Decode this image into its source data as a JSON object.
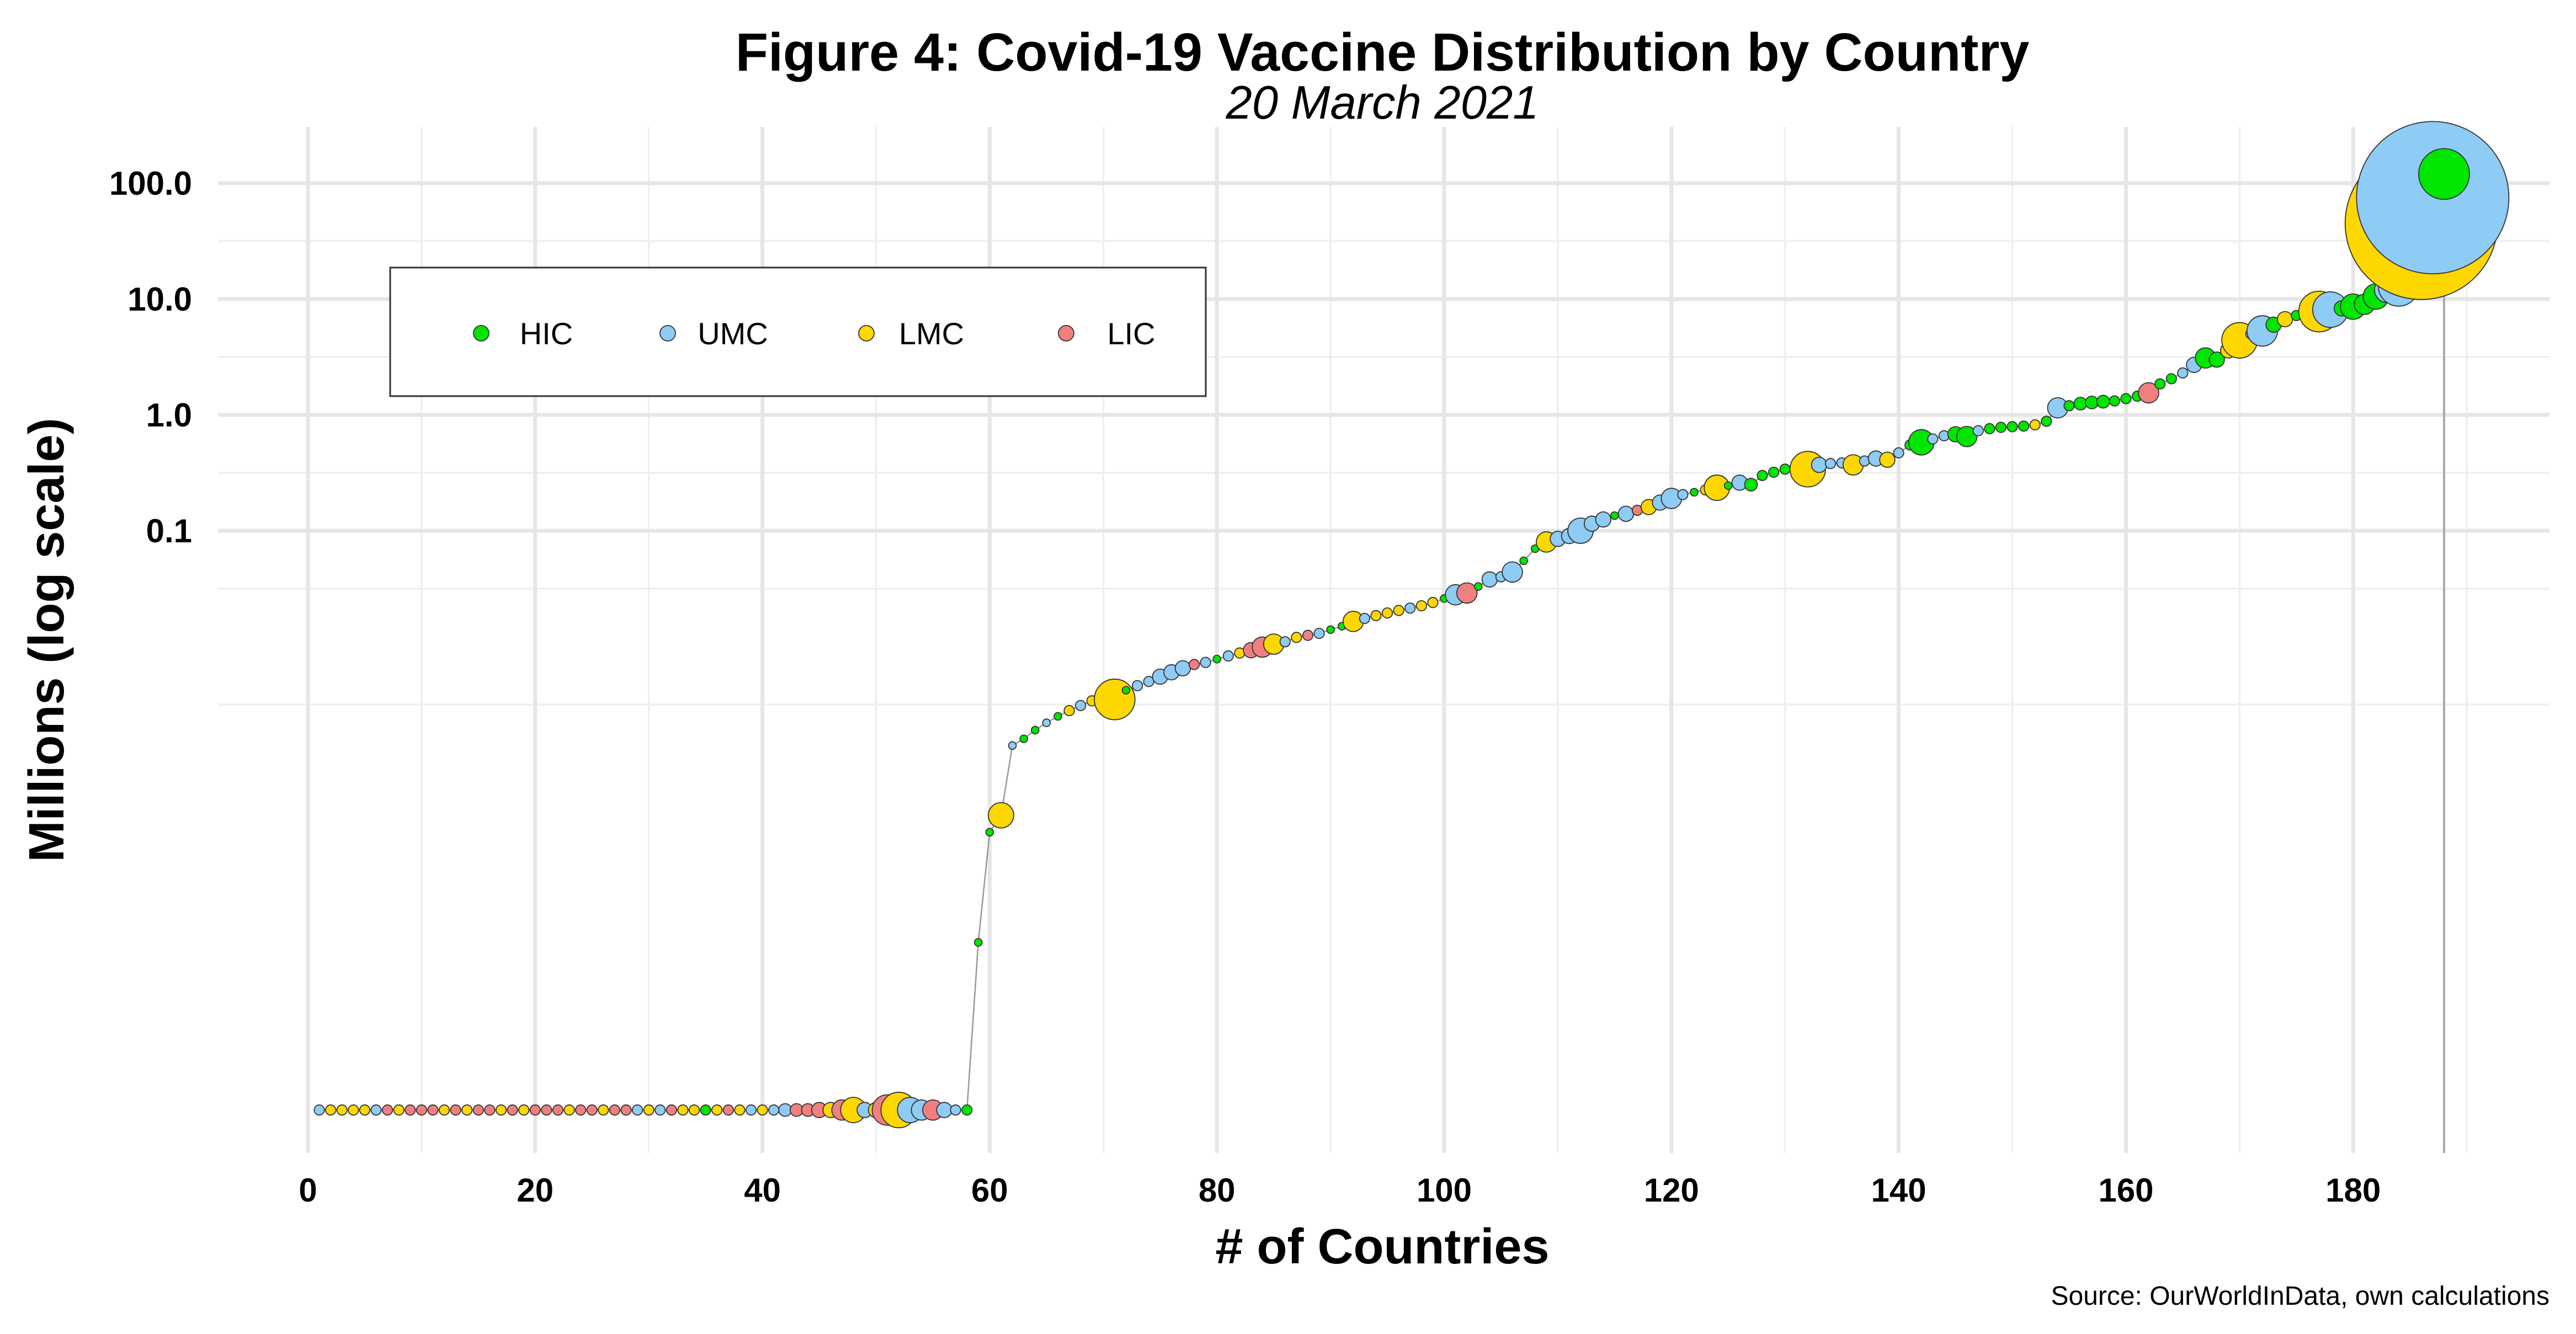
{
  "chart_data": {
    "type": "scatter",
    "title": "Figure 4: Covid-19 Vaccine Distribution by Country",
    "subtitle": "20 March 2021",
    "xlabel": "# of Countries",
    "ylabel": "Millions (log scale)",
    "caption": "Source: OurWorldInData, own calculations",
    "xlim": [
      0,
      190
    ],
    "x_ticks": [
      0,
      20,
      40,
      60,
      80,
      100,
      120,
      140,
      160,
      180
    ],
    "y_scale": "log10",
    "y_tick_values": [
      0.1,
      1,
      10,
      100
    ],
    "y_tick_labels": [
      "0.1",
      "1.0",
      "10.0",
      "100.0"
    ],
    "y_floor_value": 1e-06,
    "reference_line_x": 188,
    "legend": {
      "position": "top-left",
      "entries": [
        {
          "key": "HIC",
          "label": "HIC",
          "color": "#00e600"
        },
        {
          "key": "UMC",
          "label": "UMC",
          "color": "#8ecbf5"
        },
        {
          "key": "LMC",
          "label": "LMC",
          "color": "#ffd700"
        },
        {
          "key": "LIC",
          "label": "LIC",
          "color": "#f08080"
        }
      ]
    },
    "zero_group": "UMC,LMC,LMC,LMC,LMC,UMC,LIC,LMC,LIC,LIC,LIC,LMC,LIC,LMC,LIC,LIC,LMC,LIC,LMC,LIC,LIC,LIC,LMC,LIC,LIC,LMC,LIC,LIC,UMC,LMC,UMC,LIC,LMC,LMC,HIC,LMC,LIC,LMC,UMC,LMC,UMC,UMC,LIC,LIC,LIC,LMC,LIC,LMC,UMC,LMC,LIC,LMC,UMC,UMC,LIC,UMC,UMC,HIC",
    "zero_size": "2,2,2,2,2,2,2,2,2,2,2,2,2,2,2,2,2,2,2,2,2,2,2,2,2,2,2,2,2,2,2,2,2,2,2,2,2,2,2,2,2,2.5,2.5,2.5,3,3,4,5,3,3,6,7,5,4,4,3,2,2",
    "points": [
      {
        "x": 59,
        "y": 2.8e-05,
        "group": "HIC",
        "size": 1.5
      },
      {
        "x": 60,
        "y": 0.00025,
        "group": "HIC",
        "size": 1.5
      },
      {
        "x": 61,
        "y": 0.00035,
        "group": "LMC",
        "size": 5
      },
      {
        "x": 62,
        "y": 0.0014,
        "group": "UMC",
        "size": 1.5
      },
      {
        "x": 63,
        "y": 0.0016,
        "group": "HIC",
        "size": 1.5
      },
      {
        "x": 64,
        "y": 0.0019,
        "group": "HIC",
        "size": 1.5
      },
      {
        "x": 65,
        "y": 0.0022,
        "group": "UMC",
        "size": 1.5
      },
      {
        "x": 66,
        "y": 0.0025,
        "group": "HIC",
        "size": 1.5
      },
      {
        "x": 67,
        "y": 0.0028,
        "group": "LMC",
        "size": 2
      },
      {
        "x": 68,
        "y": 0.0031,
        "group": "UMC",
        "size": 2
      },
      {
        "x": 69,
        "y": 0.0034,
        "group": "LMC",
        "size": 2
      },
      {
        "x": 70,
        "y": 0.0036,
        "group": "HIC",
        "size": 1.5
      },
      {
        "x": 71,
        "y": 0.0035,
        "group": "LMC",
        "size": 8
      },
      {
        "x": 72,
        "y": 0.0042,
        "group": "HIC",
        "size": 1.5
      },
      {
        "x": 73,
        "y": 0.0046,
        "group": "UMC",
        "size": 2
      },
      {
        "x": 74,
        "y": 0.005,
        "group": "UMC",
        "size": 2
      },
      {
        "x": 75,
        "y": 0.0055,
        "group": "UMC",
        "size": 3
      },
      {
        "x": 76,
        "y": 0.006,
        "group": "UMC",
        "size": 3
      },
      {
        "x": 77,
        "y": 0.0065,
        "group": "UMC",
        "size": 3
      },
      {
        "x": 78,
        "y": 0.007,
        "group": "LIC",
        "size": 2
      },
      {
        "x": 79,
        "y": 0.0073,
        "group": "UMC",
        "size": 2
      },
      {
        "x": 80,
        "y": 0.0078,
        "group": "HIC",
        "size": 1.5
      },
      {
        "x": 81,
        "y": 0.0083,
        "group": "UMC",
        "size": 2
      },
      {
        "x": 82,
        "y": 0.0088,
        "group": "LMC",
        "size": 2
      },
      {
        "x": 83,
        "y": 0.0093,
        "group": "LIC",
        "size": 3
      },
      {
        "x": 84,
        "y": 0.0099,
        "group": "LIC",
        "size": 4
      },
      {
        "x": 85,
        "y": 0.0105,
        "group": "LMC",
        "size": 4
      },
      {
        "x": 86,
        "y": 0.011,
        "group": "UMC",
        "size": 2
      },
      {
        "x": 87,
        "y": 0.012,
        "group": "LMC",
        "size": 2
      },
      {
        "x": 88,
        "y": 0.0125,
        "group": "LIC",
        "size": 2
      },
      {
        "x": 89,
        "y": 0.013,
        "group": "UMC",
        "size": 2
      },
      {
        "x": 90,
        "y": 0.014,
        "group": "HIC",
        "size": 1.5
      },
      {
        "x": 91,
        "y": 0.015,
        "group": "HIC",
        "size": 1.5
      },
      {
        "x": 92,
        "y": 0.0165,
        "group": "LMC",
        "size": 4
      },
      {
        "x": 93,
        "y": 0.0175,
        "group": "UMC",
        "size": 2
      },
      {
        "x": 94,
        "y": 0.0185,
        "group": "LMC",
        "size": 2
      },
      {
        "x": 95,
        "y": 0.0195,
        "group": "LMC",
        "size": 2
      },
      {
        "x": 96,
        "y": 0.0205,
        "group": "LMC",
        "size": 2
      },
      {
        "x": 97,
        "y": 0.0215,
        "group": "UMC",
        "size": 2
      },
      {
        "x": 98,
        "y": 0.0225,
        "group": "LMC",
        "size": 2
      },
      {
        "x": 99,
        "y": 0.024,
        "group": "LMC",
        "size": 2
      },
      {
        "x": 100,
        "y": 0.026,
        "group": "HIC",
        "size": 1.5
      },
      {
        "x": 101,
        "y": 0.028,
        "group": "UMC",
        "size": 4
      },
      {
        "x": 102,
        "y": 0.029,
        "group": "LIC",
        "size": 4
      },
      {
        "x": 103,
        "y": 0.033,
        "group": "HIC",
        "size": 1.5
      },
      {
        "x": 104,
        "y": 0.038,
        "group": "UMC",
        "size": 3
      },
      {
        "x": 105,
        "y": 0.04,
        "group": "UMC",
        "size": 2
      },
      {
        "x": 106,
        "y": 0.044,
        "group": "UMC",
        "size": 4
      },
      {
        "x": 107,
        "y": 0.055,
        "group": "HIC",
        "size": 1.5
      },
      {
        "x": 108,
        "y": 0.07,
        "group": "HIC",
        "size": 1.5
      },
      {
        "x": 109,
        "y": 0.08,
        "group": "LMC",
        "size": 4
      },
      {
        "x": 110,
        "y": 0.085,
        "group": "UMC",
        "size": 3
      },
      {
        "x": 111,
        "y": 0.09,
        "group": "UMC",
        "size": 3
      },
      {
        "x": 112,
        "y": 0.1,
        "group": "UMC",
        "size": 5
      },
      {
        "x": 113,
        "y": 0.115,
        "group": "UMC",
        "size": 3
      },
      {
        "x": 114,
        "y": 0.125,
        "group": "UMC",
        "size": 3
      },
      {
        "x": 115,
        "y": 0.135,
        "group": "HIC",
        "size": 1.5
      },
      {
        "x": 116,
        "y": 0.14,
        "group": "UMC",
        "size": 3
      },
      {
        "x": 117,
        "y": 0.15,
        "group": "LIC",
        "size": 2
      },
      {
        "x": 118,
        "y": 0.16,
        "group": "LMC",
        "size": 3
      },
      {
        "x": 119,
        "y": 0.175,
        "group": "UMC",
        "size": 3
      },
      {
        "x": 120,
        "y": 0.19,
        "group": "UMC",
        "size": 4
      },
      {
        "x": 121,
        "y": 0.205,
        "group": "UMC",
        "size": 2
      },
      {
        "x": 122,
        "y": 0.215,
        "group": "HIC",
        "size": 1.5
      },
      {
        "x": 123,
        "y": 0.225,
        "group": "LMC",
        "size": 2
      },
      {
        "x": 124,
        "y": 0.235,
        "group": "LMC",
        "size": 5
      },
      {
        "x": 125,
        "y": 0.245,
        "group": "HIC",
        "size": 1.5
      },
      {
        "x": 126,
        "y": 0.26,
        "group": "UMC",
        "size": 3
      },
      {
        "x": 127,
        "y": 0.25,
        "group": "HIC",
        "size": 2.5
      },
      {
        "x": 128,
        "y": 0.3,
        "group": "HIC",
        "size": 2
      },
      {
        "x": 129,
        "y": 0.32,
        "group": "HIC",
        "size": 2
      },
      {
        "x": 130,
        "y": 0.34,
        "group": "HIC",
        "size": 2
      },
      {
        "x": 131,
        "y": 0.355,
        "group": "UMC",
        "size": 2
      },
      {
        "x": 132,
        "y": 0.34,
        "group": "LMC",
        "size": 7
      },
      {
        "x": 133,
        "y": 0.37,
        "group": "UMC",
        "size": 3
      },
      {
        "x": 134,
        "y": 0.38,
        "group": "UMC",
        "size": 2
      },
      {
        "x": 135,
        "y": 0.385,
        "group": "UMC",
        "size": 2
      },
      {
        "x": 136,
        "y": 0.37,
        "group": "LMC",
        "size": 4
      },
      {
        "x": 137,
        "y": 0.4,
        "group": "UMC",
        "size": 2
      },
      {
        "x": 138,
        "y": 0.42,
        "group": "UMC",
        "size": 3
      },
      {
        "x": 139,
        "y": 0.41,
        "group": "LMC",
        "size": 3
      },
      {
        "x": 140,
        "y": 0.47,
        "group": "UMC",
        "size": 2
      },
      {
        "x": 141,
        "y": 0.55,
        "group": "HIC",
        "size": 2
      },
      {
        "x": 142,
        "y": 0.58,
        "group": "HIC",
        "size": 5
      },
      {
        "x": 143,
        "y": 0.62,
        "group": "UMC",
        "size": 2
      },
      {
        "x": 144,
        "y": 0.66,
        "group": "UMC",
        "size": 2
      },
      {
        "x": 145,
        "y": 0.68,
        "group": "HIC",
        "size": 3
      },
      {
        "x": 146,
        "y": 0.65,
        "group": "HIC",
        "size": 4
      },
      {
        "x": 147,
        "y": 0.73,
        "group": "UMC",
        "size": 2
      },
      {
        "x": 148,
        "y": 0.76,
        "group": "HIC",
        "size": 2
      },
      {
        "x": 149,
        "y": 0.78,
        "group": "HIC",
        "size": 2
      },
      {
        "x": 150,
        "y": 0.79,
        "group": "HIC",
        "size": 2
      },
      {
        "x": 151,
        "y": 0.8,
        "group": "HIC",
        "size": 2
      },
      {
        "x": 152,
        "y": 0.82,
        "group": "LMC",
        "size": 2
      },
      {
        "x": 153,
        "y": 0.88,
        "group": "HIC",
        "size": 2
      },
      {
        "x": 154,
        "y": 1.15,
        "group": "UMC",
        "size": 4
      },
      {
        "x": 155,
        "y": 1.2,
        "group": "HIC",
        "size": 2
      },
      {
        "x": 156,
        "y": 1.25,
        "group": "HIC",
        "size": 2.5
      },
      {
        "x": 157,
        "y": 1.28,
        "group": "HIC",
        "size": 2.5
      },
      {
        "x": 158,
        "y": 1.3,
        "group": "HIC",
        "size": 2.5
      },
      {
        "x": 159,
        "y": 1.32,
        "group": "HIC",
        "size": 2
      },
      {
        "x": 160,
        "y": 1.38,
        "group": "HIC",
        "size": 2
      },
      {
        "x": 161,
        "y": 1.45,
        "group": "HIC",
        "size": 2
      },
      {
        "x": 162,
        "y": 1.55,
        "group": "LIC",
        "size": 4
      },
      {
        "x": 163,
        "y": 1.85,
        "group": "HIC",
        "size": 2
      },
      {
        "x": 164,
        "y": 2.05,
        "group": "HIC",
        "size": 2
      },
      {
        "x": 165,
        "y": 2.3,
        "group": "UMC",
        "size": 2
      },
      {
        "x": 166,
        "y": 2.7,
        "group": "UMC",
        "size": 3
      },
      {
        "x": 167,
        "y": 3.1,
        "group": "HIC",
        "size": 4
      },
      {
        "x": 168,
        "y": 3.0,
        "group": "HIC",
        "size": 3
      },
      {
        "x": 169,
        "y": 3.6,
        "group": "LMC",
        "size": 3
      },
      {
        "x": 170,
        "y": 4.4,
        "group": "LMC",
        "size": 7
      },
      {
        "x": 171,
        "y": 5.0,
        "group": "UMC",
        "size": 2
      },
      {
        "x": 172,
        "y": 5.3,
        "group": "UMC",
        "size": 6
      },
      {
        "x": 173,
        "y": 6.0,
        "group": "HIC",
        "size": 3
      },
      {
        "x": 174,
        "y": 6.7,
        "group": "LMC",
        "size": 3
      },
      {
        "x": 175,
        "y": 7.2,
        "group": "HIC",
        "size": 2
      },
      {
        "x": 176,
        "y": 7.4,
        "group": "HIC",
        "size": 2.5
      },
      {
        "x": 177,
        "y": 7.8,
        "group": "LMC",
        "size": 8
      },
      {
        "x": 178,
        "y": 8.1,
        "group": "UMC",
        "size": 7
      },
      {
        "x": 179,
        "y": 8.3,
        "group": "HIC",
        "size": 3
      },
      {
        "x": 180,
        "y": 8.6,
        "group": "HIC",
        "size": 5
      },
      {
        "x": 181,
        "y": 9.0,
        "group": "HIC",
        "size": 4
      },
      {
        "x": 182,
        "y": 10.5,
        "group": "HIC",
        "size": 5
      },
      {
        "x": 183,
        "y": 12.0,
        "group": "UMC",
        "size": 5
      },
      {
        "x": 184,
        "y": 13.0,
        "group": "UMC",
        "size": 8
      },
      {
        "x": 185,
        "y": 26.0,
        "group": "HIC",
        "size": 2
      },
      {
        "x": 186,
        "y": 45.0,
        "group": "LMC",
        "size": 30
      },
      {
        "x": 187,
        "y": 75.0,
        "group": "UMC",
        "size": 30
      },
      {
        "x": 188,
        "y": 120.0,
        "group": "HIC",
        "size": 10
      }
    ]
  }
}
